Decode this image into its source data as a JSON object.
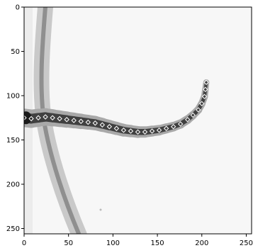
{
  "chart_data": {
    "type": "scatter",
    "xlim": [
      0,
      256
    ],
    "ylim": [
      256,
      0
    ],
    "x_ticks": [
      0,
      50,
      100,
      150,
      200,
      250
    ],
    "y_ticks": [
      0,
      50,
      100,
      150,
      200,
      250
    ],
    "background_image": "grayscale-microscopy-tapering-filament-crossing-vertical-strand",
    "marker": "white-diamond-outline",
    "series": [
      {
        "x": [
          0,
          8,
          16,
          24,
          32,
          40,
          48,
          56,
          64,
          72,
          80,
          88,
          96,
          104,
          112,
          120,
          128,
          136,
          144,
          152,
          160,
          168,
          176,
          184,
          190,
          196,
          200,
          203,
          204,
          205
        ],
        "y": [
          125,
          126,
          125,
          124,
          125,
          126,
          127,
          128,
          129,
          130,
          131,
          133,
          135,
          137,
          139,
          140,
          141,
          141,
          140,
          139,
          137,
          135,
          132,
          127,
          122,
          116,
          109,
          101,
          93,
          85
        ]
      }
    ]
  }
}
